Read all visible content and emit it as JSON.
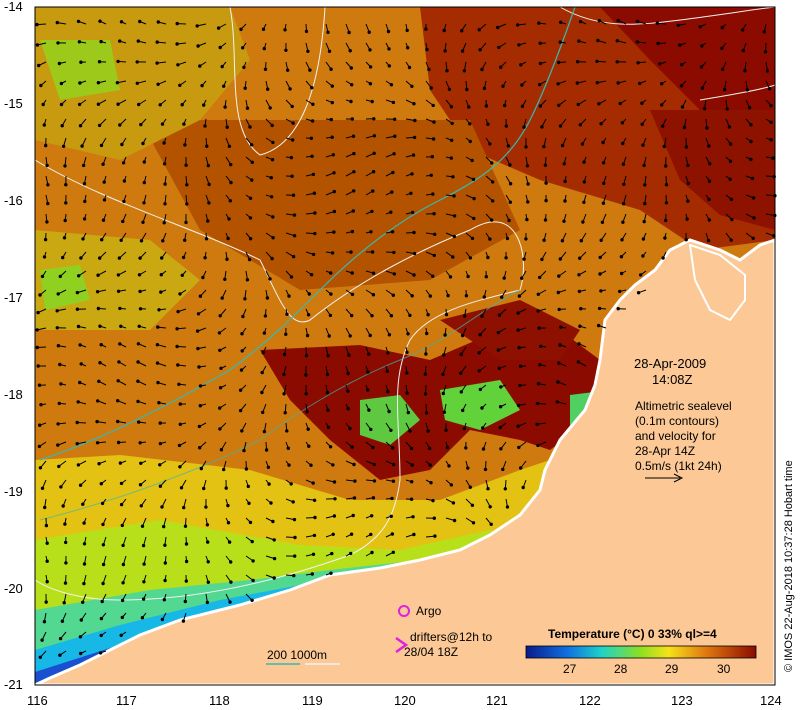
{
  "map": {
    "lat_labels": [
      "-14",
      "-15",
      "-16",
      "-17",
      "-18",
      "-19",
      "-20",
      "-21"
    ],
    "lon_labels": [
      "116",
      "117",
      "118",
      "119",
      "120",
      "121",
      "122",
      "123",
      "124"
    ]
  },
  "annotation": {
    "date": "28-Apr-2009",
    "time": "14:08Z",
    "info_lines": [
      "Altimetric sealevel",
      "(0.1m contours)",
      "and velocity for",
      "28-Apr 14Z",
      "0.5m/s (1kt 24h)"
    ]
  },
  "legend": {
    "argo_label": "Argo",
    "drifters_line1": "drifters@12h to",
    "drifters_line2": "28/04 18Z",
    "bathymetry_label": "200  1000m",
    "colorbar_title": "Temperature (°C) 0 33% ql>=4",
    "colorbar_ticks": [
      "27",
      "28",
      "29",
      "30"
    ],
    "colors": {
      "cold": "#0a1a8c",
      "mid": "#1fd2c8",
      "warm": "#f6e11a",
      "hot": "#8b0b00",
      "land": "#fbc896",
      "argo": "#e020e0",
      "isobath": "#3ab7b0"
    }
  },
  "credit": "© IMOS 22-Aug-2018 10:37:28 Hobart time"
}
